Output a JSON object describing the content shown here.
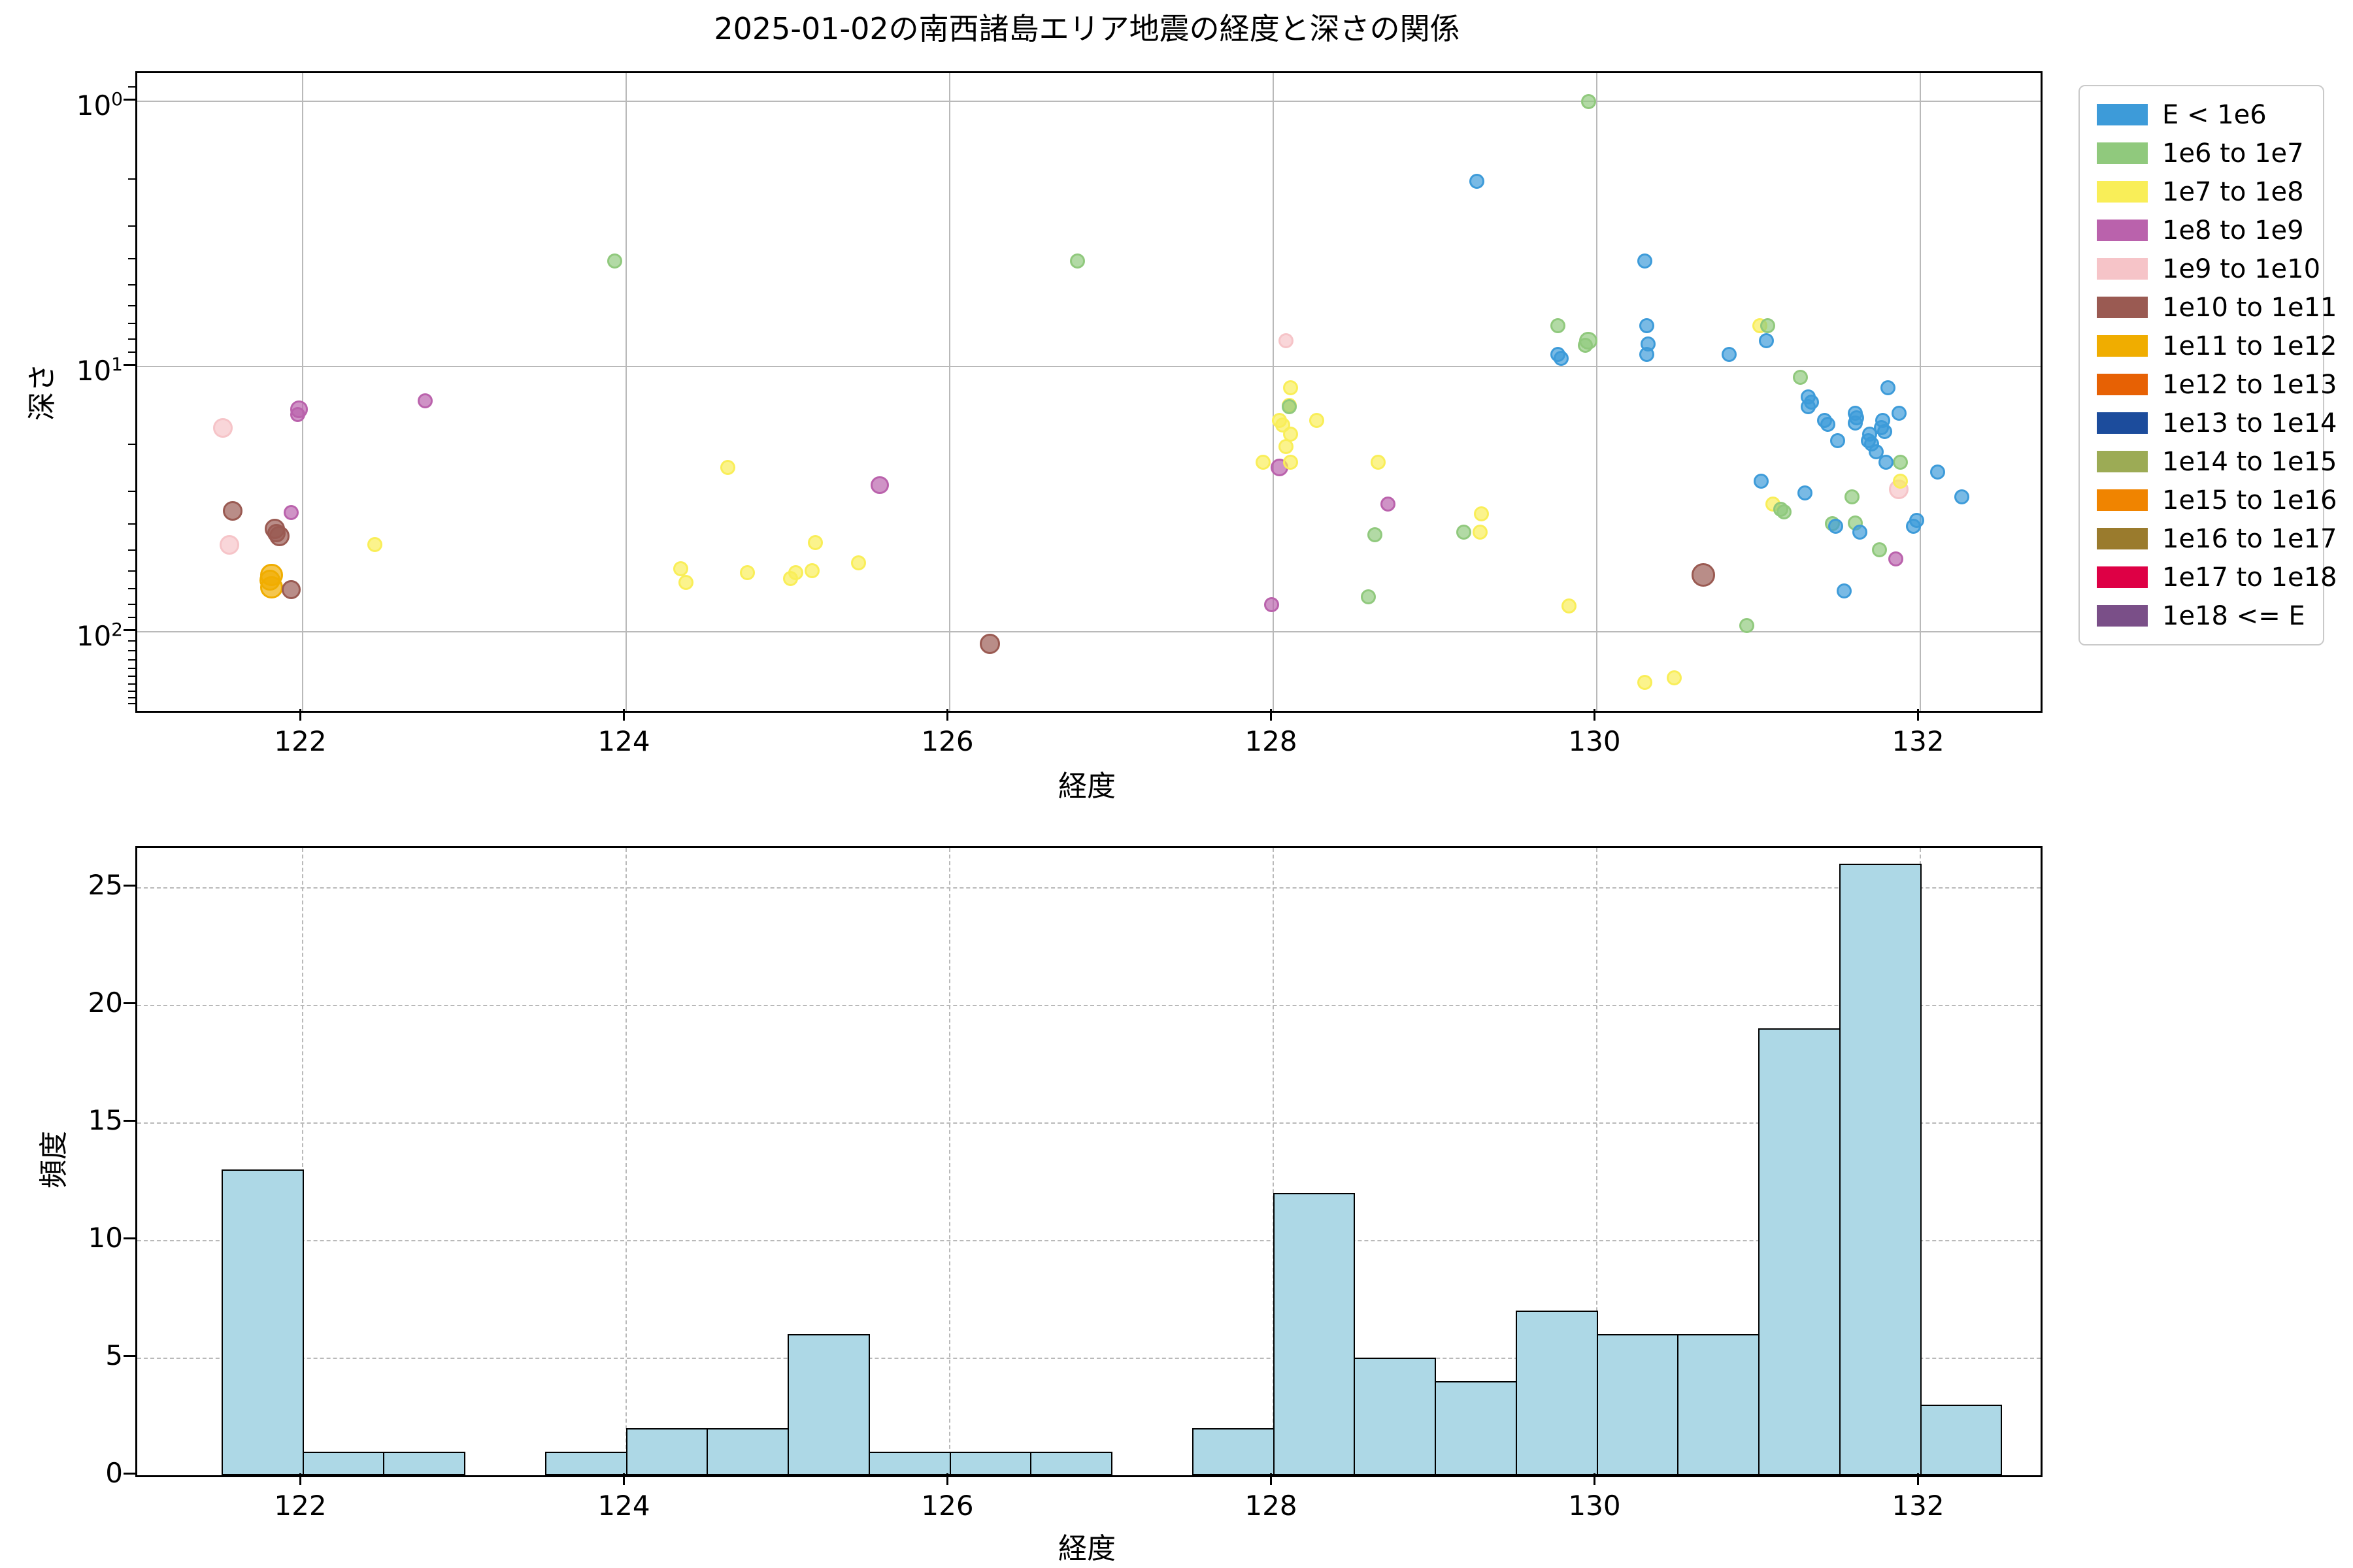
{
  "title": "2025-01-02の南西諸島エリア地震の経度と深さの関係",
  "chart_data": [
    {
      "type": "scatter",
      "title": "2025-01-02の南西諸島エリア地震の経度と深さの関係",
      "xlabel": "経度",
      "ylabel": "深さ",
      "x_ticks": [
        122,
        124,
        126,
        128,
        130,
        132
      ],
      "xlim": [
        121.0,
        132.76
      ],
      "y_scale": "log-inverted",
      "y_tick_exponents": [
        0,
        1,
        2
      ],
      "ylim_depth": [
        0.78,
        198
      ],
      "y_minor_ticks": [
        0.9,
        2,
        3,
        4,
        5,
        6,
        7,
        8,
        9,
        20,
        30,
        40,
        50,
        60,
        70,
        80,
        90,
        110,
        120,
        130,
        140,
        150,
        160,
        170,
        180,
        190
      ],
      "grid": "solid",
      "legend_position": "outside-upper-right",
      "series": [
        {
          "name": "E < 1e6",
          "color": "#3D9BD9",
          "points": [
            [
              129.26,
              2.0
            ],
            [
              130.3,
              4.0
            ],
            [
              130.31,
              7.0
            ],
            [
              129.76,
              9.0
            ],
            [
              130.31,
              9.0
            ],
            [
              130.32,
              8.2
            ],
            [
              130.82,
              9.0
            ],
            [
              129.78,
              9.3
            ],
            [
              131.05,
              8.0
            ],
            [
              131.31,
              13
            ],
            [
              131.33,
              13.6
            ],
            [
              131.31,
              14.2
            ],
            [
              131.41,
              16
            ],
            [
              131.43,
              16.5
            ],
            [
              131.49,
              19
            ],
            [
              131.02,
              27
            ],
            [
              131.29,
              30
            ],
            [
              131.8,
              12
            ],
            [
              131.6,
              15
            ],
            [
              131.61,
              15.6
            ],
            [
              131.6,
              16.3
            ],
            [
              131.87,
              15
            ],
            [
              131.77,
              16
            ],
            [
              131.76,
              17
            ],
            [
              131.78,
              17.6
            ],
            [
              131.69,
              18
            ],
            [
              131.68,
              19
            ],
            [
              131.7,
              19.6
            ],
            [
              131.73,
              21
            ],
            [
              131.79,
              23
            ],
            [
              132.11,
              25
            ],
            [
              131.98,
              38
            ],
            [
              131.96,
              40
            ],
            [
              131.63,
              42
            ],
            [
              131.48,
              40
            ],
            [
              131.53,
              70
            ],
            [
              132.26,
              31
            ]
          ]
        },
        {
          "name": "1e6 to 1e7",
          "color": "#90C97D",
          "points": [
            [
              129.95,
              1.0
            ],
            [
              123.93,
              4.0
            ],
            [
              126.79,
              4.0
            ],
            [
              129.76,
              7.0
            ],
            [
              131.06,
              7.0
            ],
            [
              129.95,
              8.0,
              1.2
            ],
            [
              129.93,
              8.3
            ],
            [
              131.26,
              11
            ],
            [
              128.1,
              14.2
            ],
            [
              131.88,
              23
            ],
            [
              131.58,
              31
            ],
            [
              131.14,
              34.5
            ],
            [
              131.16,
              35.4
            ],
            [
              131.6,
              39
            ],
            [
              131.46,
              39.2
            ],
            [
              128.63,
              43
            ],
            [
              129.18,
              42
            ],
            [
              131.75,
              49
            ],
            [
              128.59,
              74
            ],
            [
              130.93,
              95
            ]
          ]
        },
        {
          "name": "1e7 to 1e8",
          "color": "#F9EE58",
          "points": [
            [
              131.01,
              7.0
            ],
            [
              128.11,
              12
            ],
            [
              128.1,
              14
            ],
            [
              128.04,
              16
            ],
            [
              128.27,
              16
            ],
            [
              128.06,
              16.6
            ],
            [
              128.11,
              18
            ],
            [
              128.08,
              20
            ],
            [
              127.94,
              23
            ],
            [
              128.11,
              23
            ],
            [
              128.65,
              23
            ],
            [
              124.63,
              24
            ],
            [
              131.88,
              27
            ],
            [
              131.09,
              33
            ],
            [
              129.29,
              36
            ],
            [
              129.28,
              42
            ],
            [
              122.45,
              47
            ],
            [
              125.17,
              46
            ],
            [
              125.44,
              55
            ],
            [
              124.34,
              58
            ],
            [
              125.15,
              59
            ],
            [
              125.05,
              60
            ],
            [
              125.02,
              63
            ],
            [
              124.37,
              65
            ],
            [
              124.75,
              60
            ],
            [
              129.83,
              80
            ],
            [
              130.3,
              155
            ],
            [
              130.48,
              149
            ]
          ]
        },
        {
          "name": "1e8 to 1e9",
          "color": "#BA62AC",
          "points": [
            [
              121.98,
              14.5,
              1.15
            ],
            [
              122.76,
              13.5
            ],
            [
              121.93,
              35.5
            ],
            [
              121.97,
              15.2
            ],
            [
              125.57,
              28,
              1.2
            ],
            [
              128.04,
              24,
              1.2
            ],
            [
              128.71,
              33
            ],
            [
              127.99,
              79
            ],
            [
              131.85,
              53
            ]
          ]
        },
        {
          "name": "1e9 to 1e10",
          "color": "#F6C4C8",
          "points": [
            [
              121.51,
              17,
              1.3
            ],
            [
              121.55,
              47,
              1.3
            ],
            [
              128.08,
              8.0
            ],
            [
              131.87,
              29,
              1.3
            ]
          ]
        },
        {
          "name": "1e10 to 1e11",
          "color": "#9A5A52",
          "points": [
            [
              121.57,
              35,
              1.3
            ],
            [
              121.83,
              41,
              1.35
            ],
            [
              121.86,
              43.5,
              1.35
            ],
            [
              121.84,
              42.5,
              1.2
            ],
            [
              121.93,
              69.5,
              1.25
            ],
            [
              126.25,
              111,
              1.35
            ],
            [
              130.66,
              61,
              1.55
            ]
          ]
        },
        {
          "name": "1e11 to 1e12",
          "color": "#F0AD00",
          "points": [
            [
              121.81,
              61,
              1.5
            ],
            [
              121.81,
              68,
              1.5
            ],
            [
              121.8,
              64,
              1.4
            ]
          ]
        }
      ],
      "legend_entries": [
        {
          "label": "E < 1e6",
          "color": "#3D9BD9"
        },
        {
          "label": "1e6 to 1e7",
          "color": "#90C97D"
        },
        {
          "label": "1e7 to 1e8",
          "color": "#F9EE58"
        },
        {
          "label": "1e8 to 1e9",
          "color": "#BA62AC"
        },
        {
          "label": "1e9 to 1e10",
          "color": "#F6C4C8"
        },
        {
          "label": "1e10 to 1e11",
          "color": "#9A5A52"
        },
        {
          "label": "1e11 to 1e12",
          "color": "#F0AD00"
        },
        {
          "label": "1e12 to 1e13",
          "color": "#E76104"
        },
        {
          "label": "1e13 to 1e14",
          "color": "#1C4C9C"
        },
        {
          "label": "1e14 to 1e15",
          "color": "#9CAB55"
        },
        {
          "label": "1e15 to 1e16",
          "color": "#F08400"
        },
        {
          "label": "1e16 to 1e17",
          "color": "#9A7B2D"
        },
        {
          "label": "1e17 to 1e18",
          "color": "#DE0045"
        },
        {
          "label": "1e18 <= E",
          "color": "#7A4F88"
        }
      ]
    },
    {
      "type": "bar",
      "xlabel": "経度",
      "ylabel": "頻度",
      "x_ticks": [
        122,
        124,
        126,
        128,
        130,
        132
      ],
      "bin_start": 121.5,
      "bin_width": 0.5,
      "counts": [
        13,
        1,
        1,
        0,
        1,
        2,
        2,
        6,
        1,
        1,
        1,
        0,
        2,
        12,
        5,
        4,
        7,
        6,
        6,
        19,
        26,
        3
      ],
      "bar_color": "#ADD8E6",
      "bar_edge_color": "#000000",
      "yticks": [
        0,
        5,
        10,
        15,
        20,
        25
      ],
      "ylim": [
        0,
        26.7
      ],
      "grid": "dashed"
    }
  ]
}
